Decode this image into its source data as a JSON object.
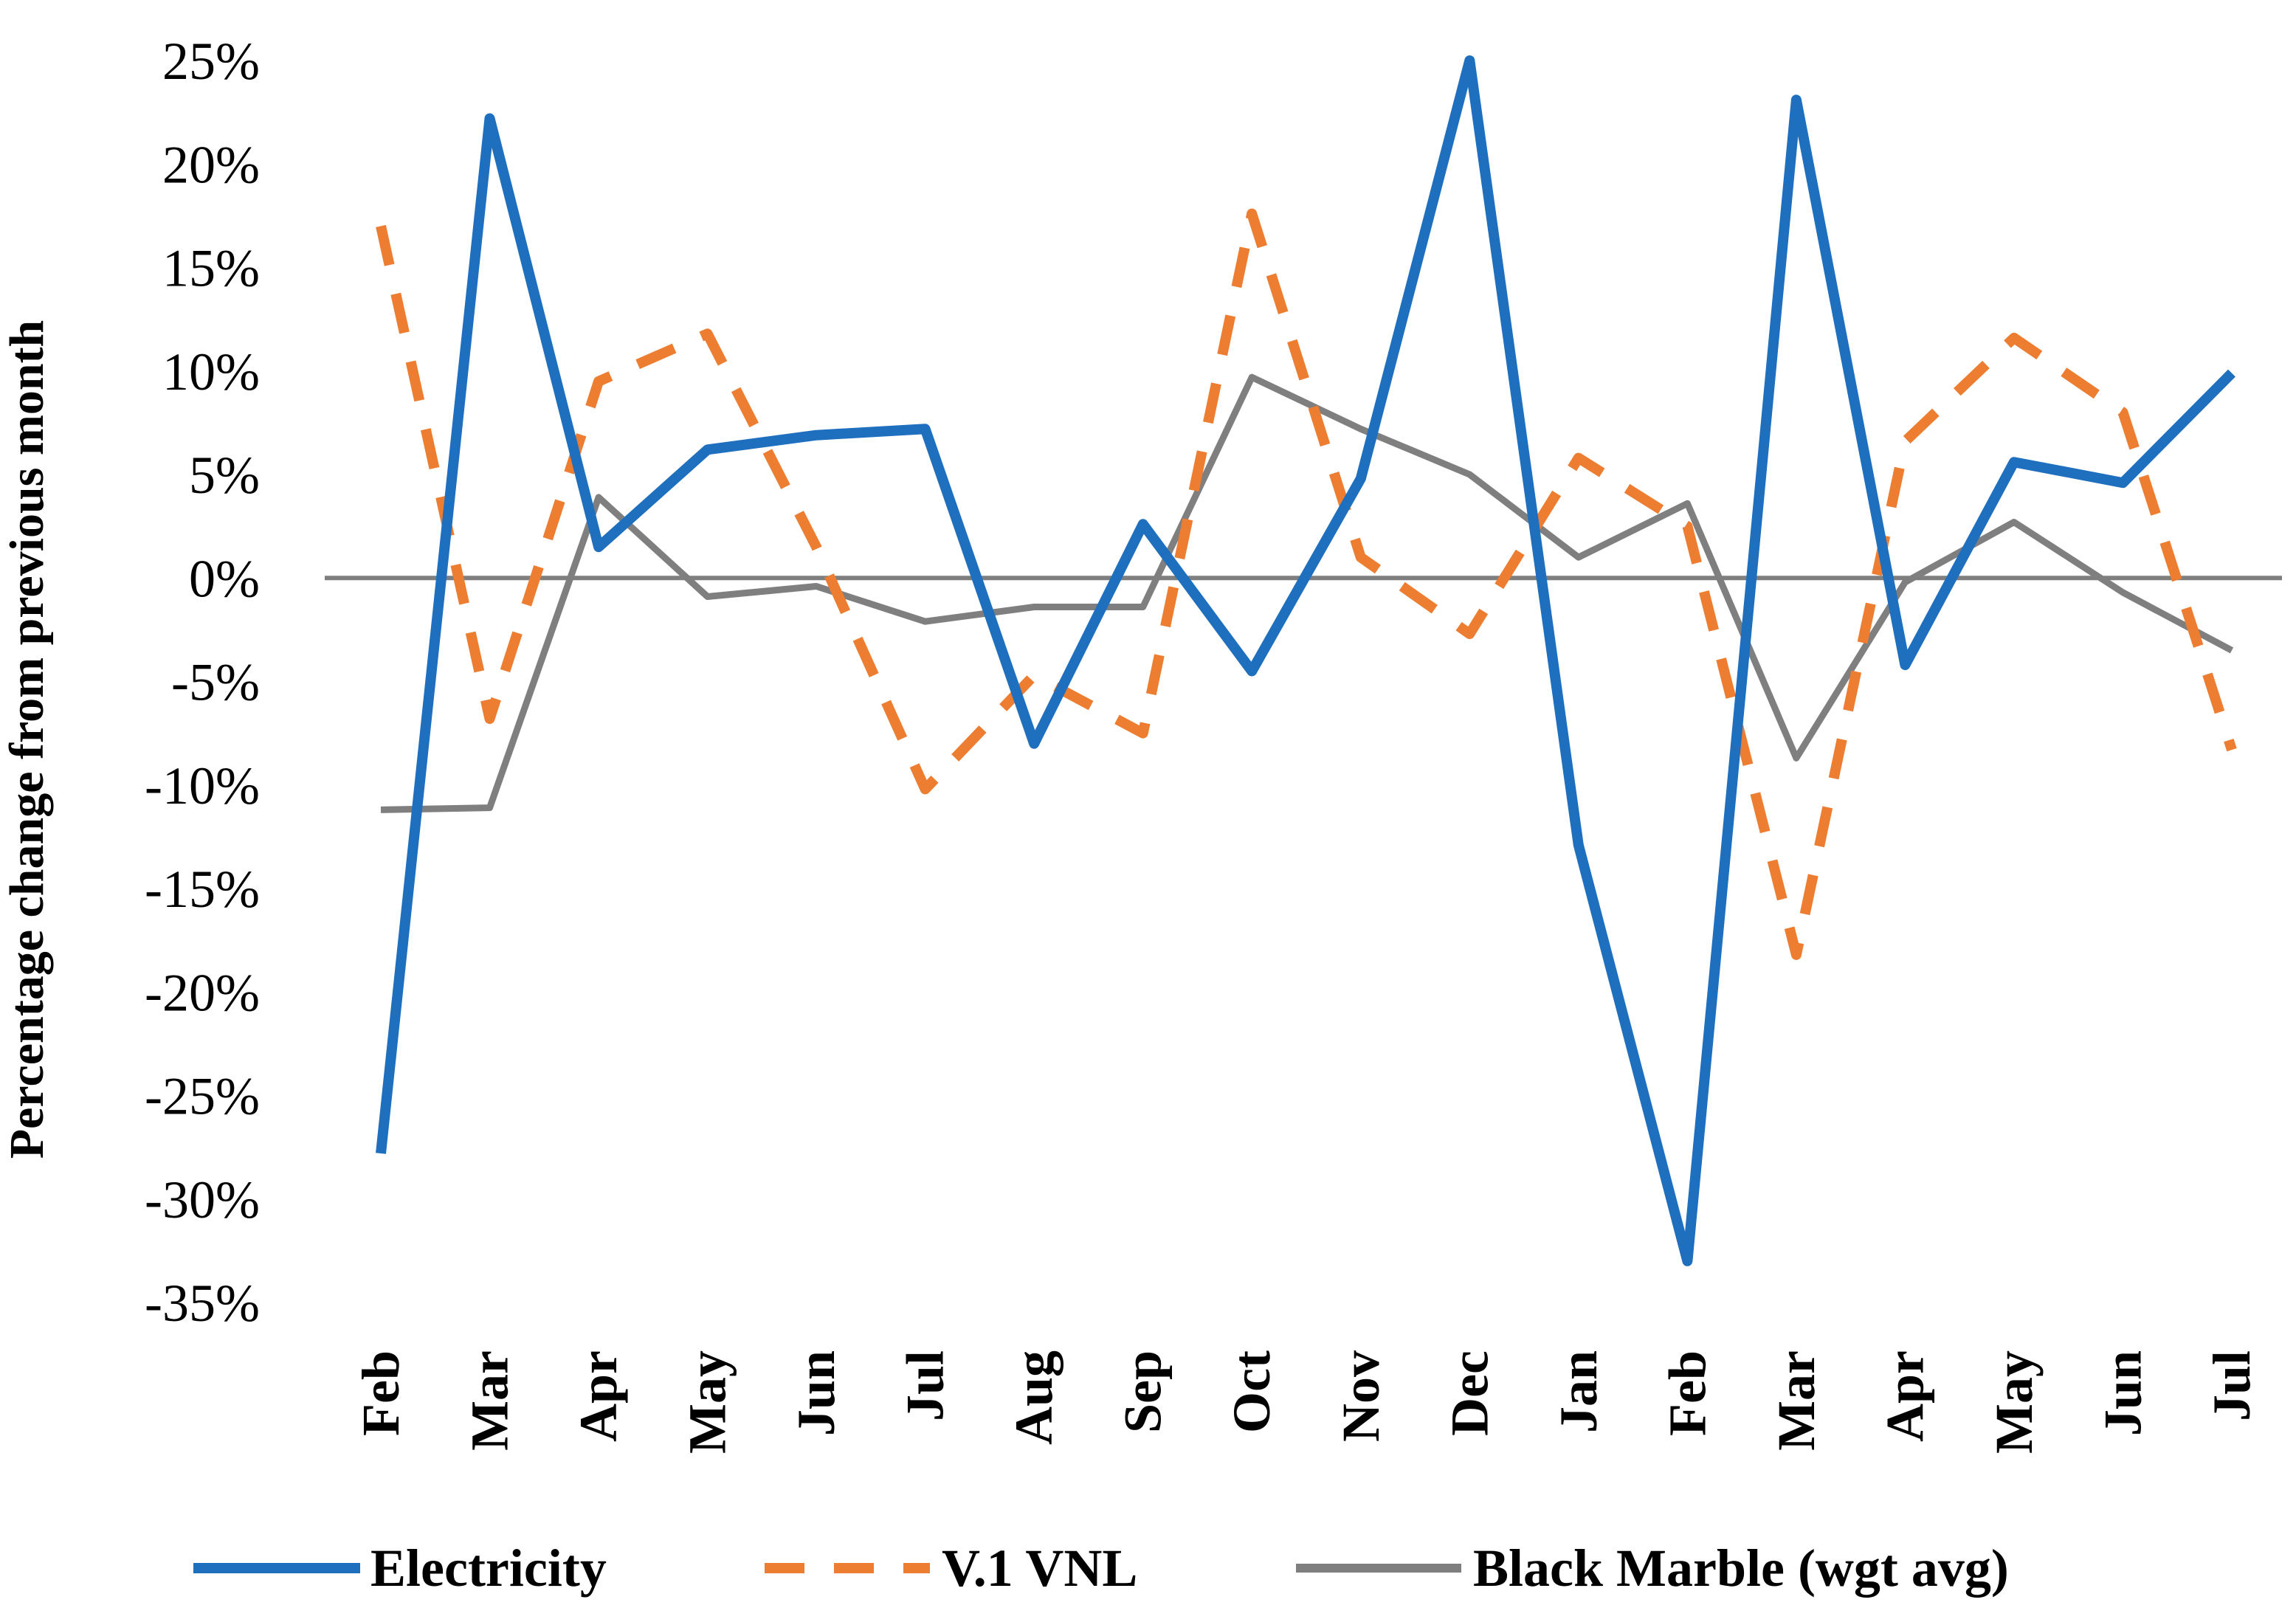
{
  "chart_data": {
    "type": "line",
    "title": "",
    "xlabel": "",
    "ylabel": "Percentage change from previous month",
    "ylim": [
      -35,
      25
    ],
    "yticks": [
      25,
      20,
      15,
      10,
      5,
      0,
      -5,
      -10,
      -15,
      -20,
      -25,
      -30,
      -35
    ],
    "ytick_labels": [
      "25%",
      "20%",
      "15%",
      "10%",
      "5%",
      "0%",
      "-5%",
      "-10%",
      "-15%",
      "-20%",
      "-25%",
      "-30%",
      "-35%"
    ],
    "categories": [
      "Feb",
      "Mar",
      "Apr",
      "May",
      "Jun",
      "Jul",
      "Aug",
      "Sep",
      "Oct",
      "Nov",
      "Dec",
      "Jan",
      "Feb",
      "Mar",
      "Apr",
      "May",
      "Jun",
      "Jul"
    ],
    "grid": false,
    "zero_line": true,
    "legend_position": "bottom",
    "series": [
      {
        "name": "Electricity",
        "color": "#1f6fbf",
        "style": "solid",
        "values": [
          -27.8,
          22.2,
          1.5,
          6.2,
          6.9,
          7.2,
          -8.0,
          2.6,
          -4.5,
          4.8,
          25.0,
          -12.9,
          -33.0,
          23.1,
          -4.2,
          5.6,
          4.6,
          9.9
        ]
      },
      {
        "name": "V.1 VNL",
        "color": "#ed7d31",
        "style": "dashed",
        "values": [
          17.0,
          -6.8,
          9.5,
          11.8,
          1.5,
          -10.2,
          -4.7,
          -7.5,
          17.6,
          1.0,
          -2.7,
          5.8,
          2.5,
          -18.2,
          6.6,
          11.6,
          8.0,
          -8.3
        ]
      },
      {
        "name": "Black Marble (wgt avg)",
        "color": "#7f7f7f",
        "style": "solid",
        "values": [
          -11.2,
          -11.1,
          3.9,
          -0.9,
          -0.4,
          -2.1,
          -1.4,
          -1.4,
          9.7,
          7.2,
          5.0,
          1.0,
          3.6,
          -8.7,
          -0.2,
          2.7,
          -0.7,
          -3.5
        ]
      }
    ]
  }
}
